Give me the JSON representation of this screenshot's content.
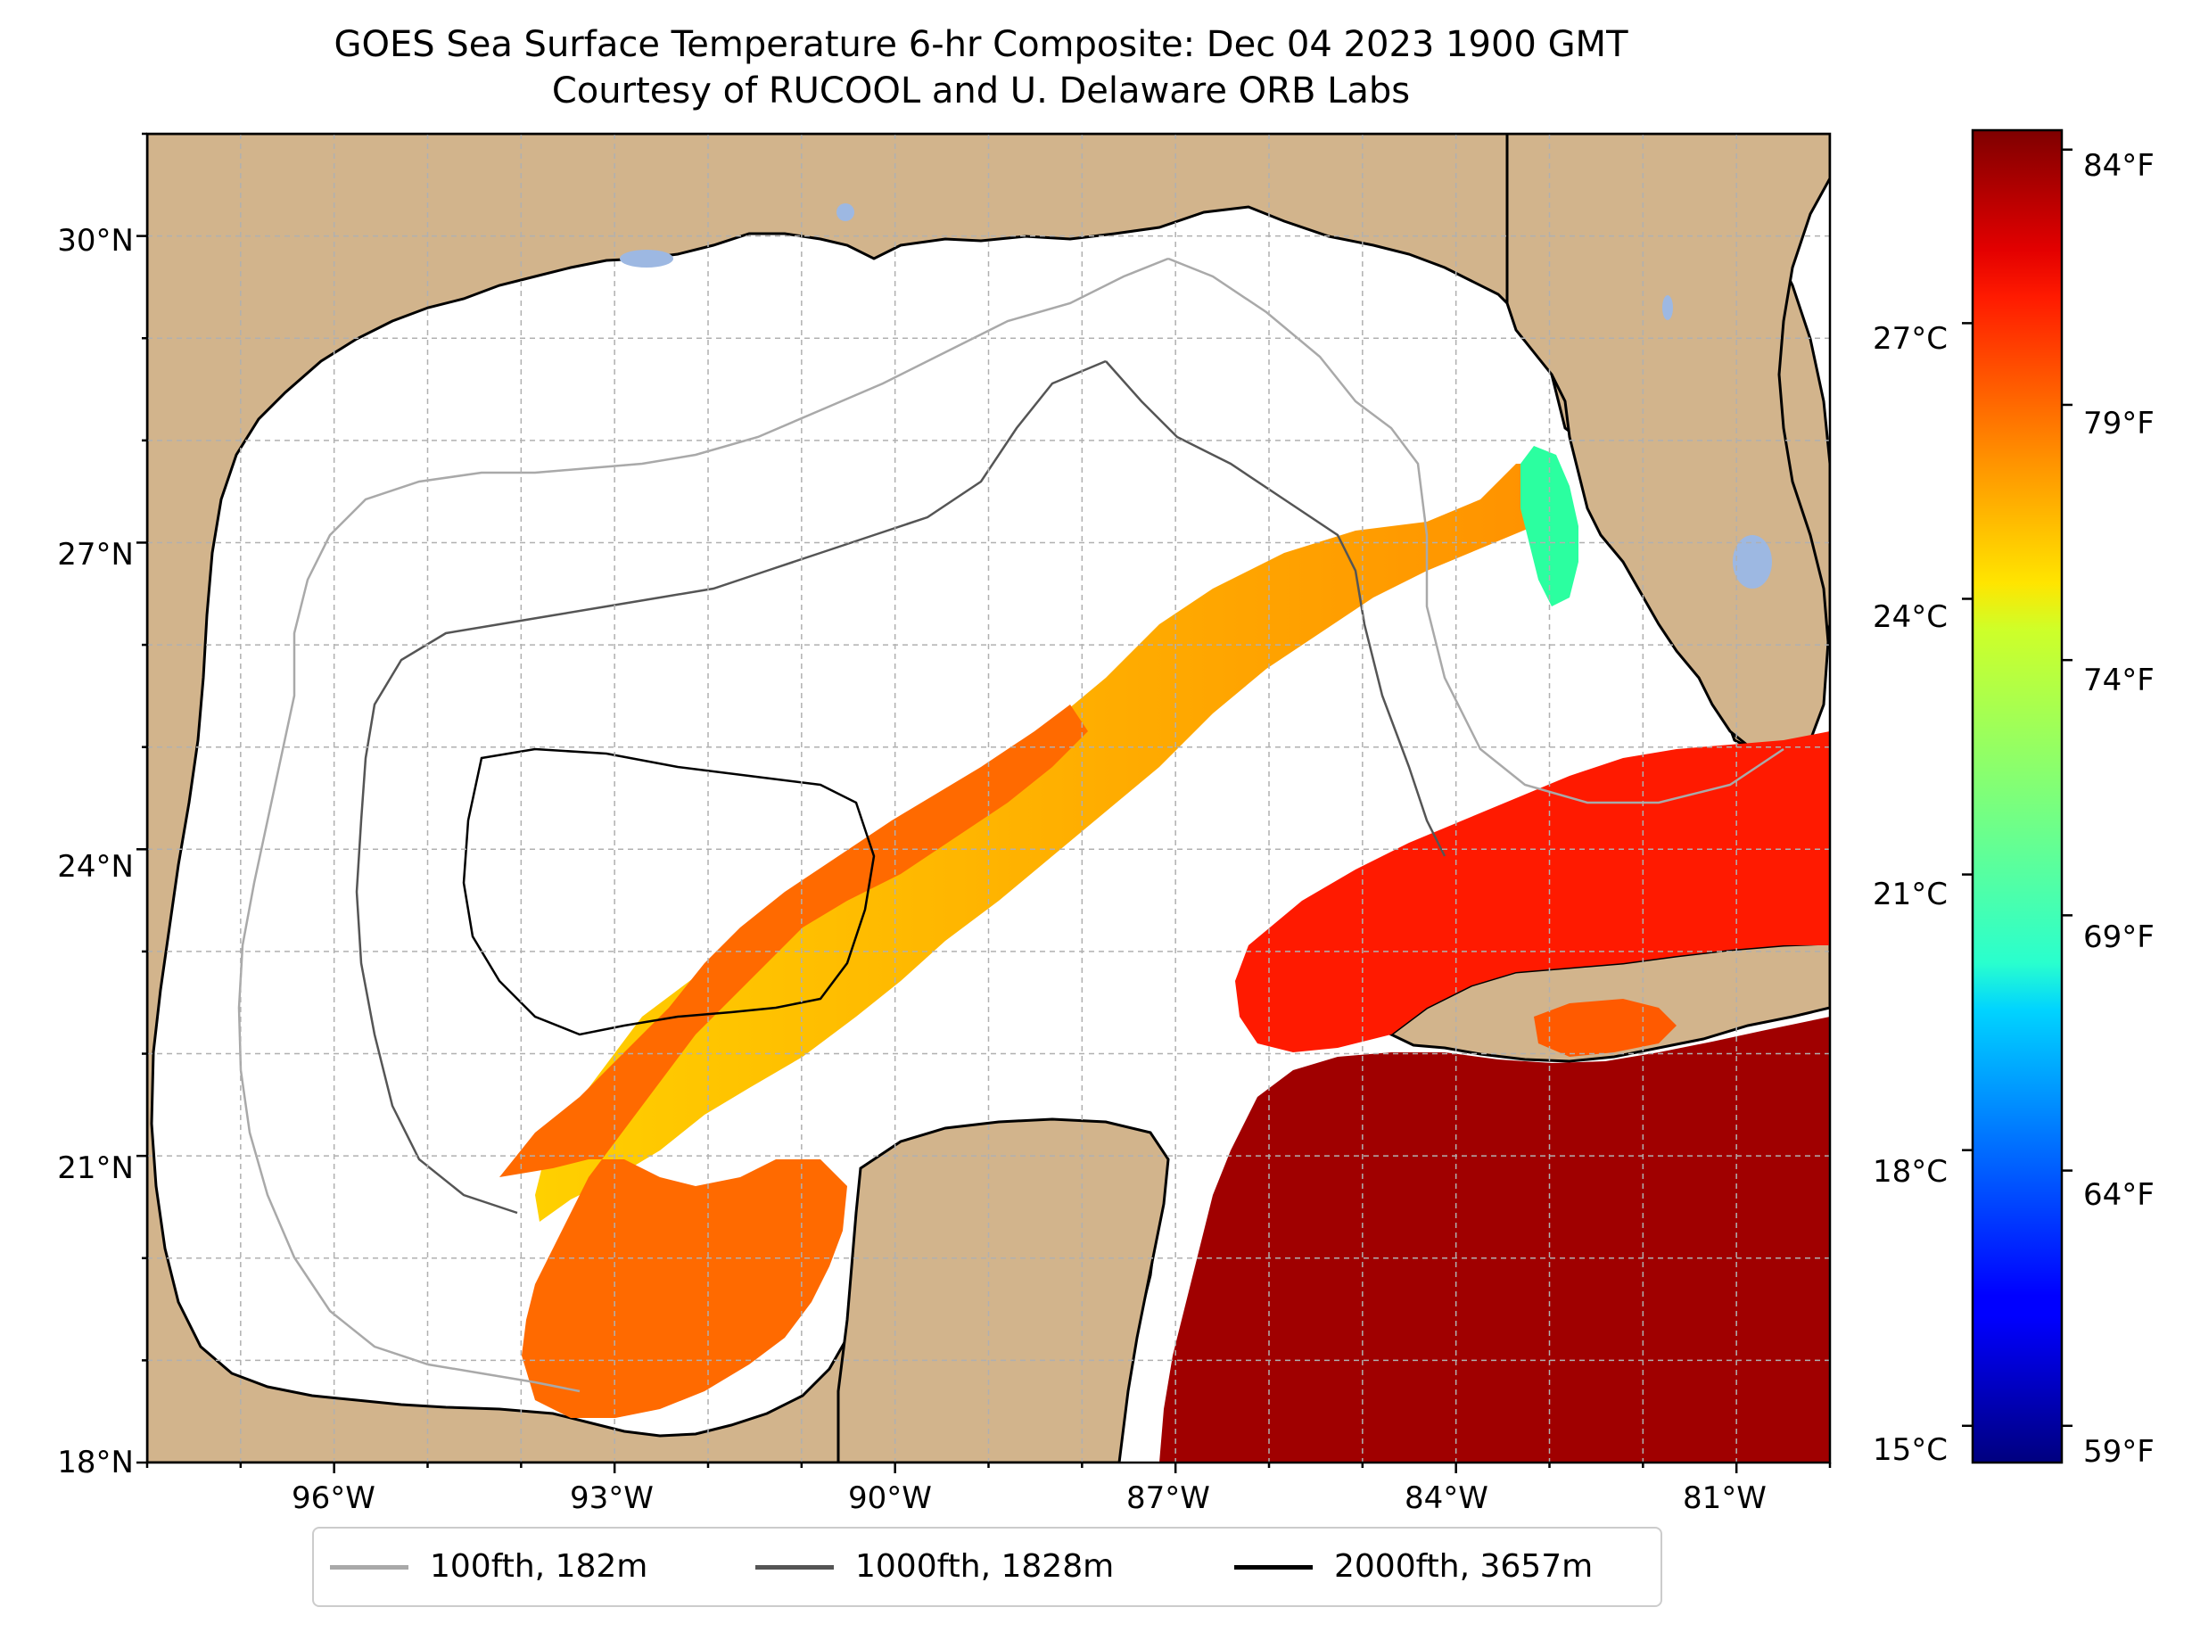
{
  "title": {
    "line1": "GOES Sea Surface Temperature 6-hr Composite: Dec 04 2023 1900 GMT",
    "line2": "Courtesy of RUCOOL and U. Delaware ORB Labs"
  },
  "map": {
    "extent": {
      "lon_min": -98,
      "lon_max": -80,
      "lat_min": 18,
      "lat_max": 31
    },
    "land_color": "#D2B48C",
    "lake_color": "#9DB8E2",
    "no_data_color": "#FFFFFF",
    "grid": true,
    "lat_ticks": [
      {
        "value": 30,
        "label": "30°N"
      },
      {
        "value": 27,
        "label": "27°N"
      },
      {
        "value": 24,
        "label": "24°N"
      },
      {
        "value": 21,
        "label": "21°N"
      },
      {
        "value": 18,
        "label": "18°N"
      }
    ],
    "lon_ticks": [
      {
        "value": -96,
        "label": "96°W"
      },
      {
        "value": -93,
        "label": "93°W"
      },
      {
        "value": -90,
        "label": "90°W"
      },
      {
        "value": -87,
        "label": "87°W"
      },
      {
        "value": -84,
        "label": "84°W"
      },
      {
        "value": -81,
        "label": "81°W"
      }
    ]
  },
  "colorbar": {
    "colormap": "jet",
    "celsius_ticks": [
      {
        "value": 27,
        "label": "27°C"
      },
      {
        "value": 24,
        "label": "24°C"
      },
      {
        "value": 21,
        "label": "21°C"
      },
      {
        "value": 18,
        "label": "18°C"
      },
      {
        "value": 15,
        "label": "15°C"
      }
    ],
    "fahrenheit_ticks": [
      {
        "value": 84,
        "label": "84°F"
      },
      {
        "value": 79,
        "label": "79°F"
      },
      {
        "value": 74,
        "label": "74°F"
      },
      {
        "value": 69,
        "label": "69°F"
      },
      {
        "value": 64,
        "label": "64°F"
      },
      {
        "value": 59,
        "label": "59°F"
      }
    ]
  },
  "legend": {
    "items": [
      {
        "label": "100fth, 182m",
        "color": "#A9A9A9"
      },
      {
        "label": "1000fth, 1828m",
        "color": "#555555"
      },
      {
        "label": "2000fth, 3657m",
        "color": "#000000"
      }
    ]
  }
}
